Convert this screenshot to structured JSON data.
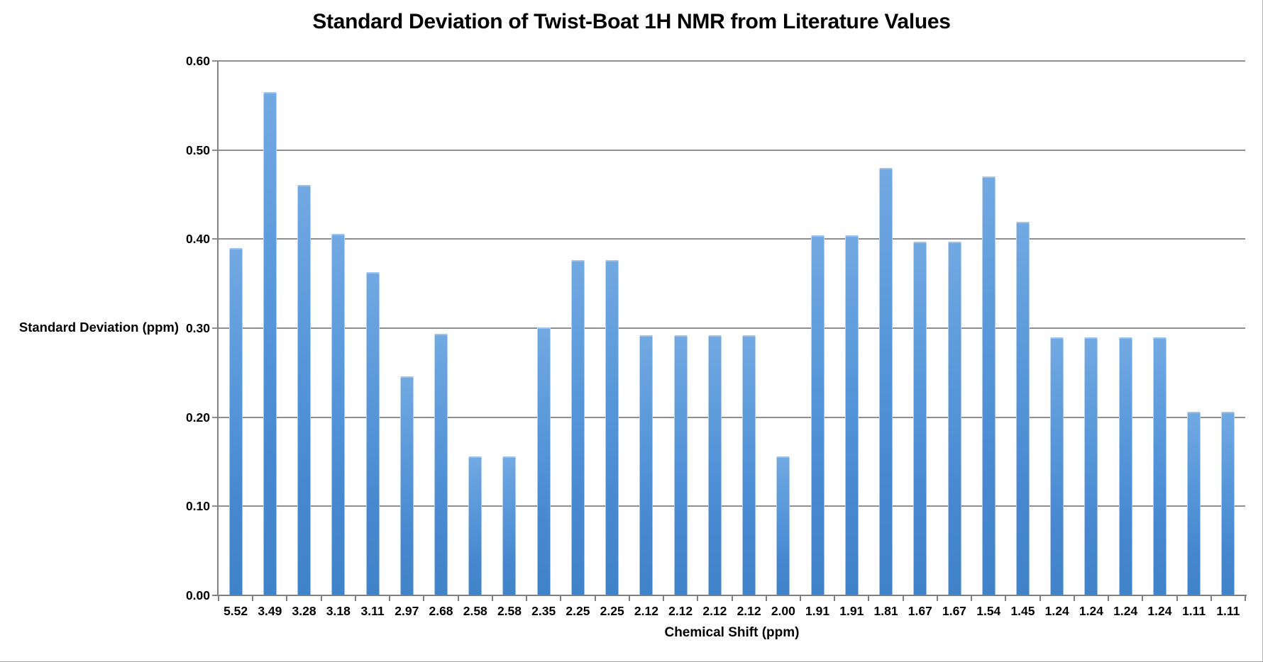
{
  "chart_data": {
    "type": "bar",
    "title": "Standard Deviation of Twist-Boat 1H NMR from Literature Values",
    "xlabel": "Chemical Shift (ppm)",
    "ylabel": "Standard Deviation (ppm)",
    "categories": [
      "5.52",
      "3.49",
      "3.28",
      "3.18",
      "3.11",
      "2.97",
      "2.68",
      "2.58",
      "2.58",
      "2.35",
      "2.25",
      "2.25",
      "2.12",
      "2.12",
      "2.12",
      "2.12",
      "2.00",
      "1.91",
      "1.91",
      "1.81",
      "1.67",
      "1.67",
      "1.54",
      "1.45",
      "1.24",
      "1.24",
      "1.24",
      "1.24",
      "1.11",
      "1.11"
    ],
    "values": [
      0.39,
      0.565,
      0.461,
      0.406,
      0.363,
      0.246,
      0.294,
      0.156,
      0.156,
      0.301,
      0.376,
      0.376,
      0.292,
      0.292,
      0.292,
      0.292,
      0.156,
      0.404,
      0.404,
      0.48,
      0.397,
      0.397,
      0.47,
      0.419,
      0.29,
      0.29,
      0.29,
      0.29,
      0.206,
      0.206
    ],
    "ylim": [
      0.0,
      0.6
    ],
    "ytick_labels": [
      "0.00",
      "0.10",
      "0.20",
      "0.30",
      "0.40",
      "0.50",
      "0.60"
    ],
    "grid": "horizontal",
    "legend": "none",
    "colors": {
      "bar_top": "#72a9e2",
      "bar_bottom": "#4083c8",
      "gridline": "#8f8f8f",
      "axis": "#7f7f7f",
      "text": "#000000"
    }
  }
}
